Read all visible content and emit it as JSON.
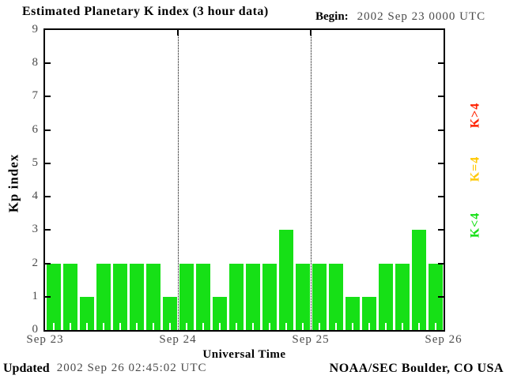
{
  "app": {
    "title": "Estimated Planetary K index (3 hour data)",
    "begin_label": "Begin:",
    "begin_value": "2002 Sep 23 0000 UTC",
    "updated_label": "Updated",
    "updated_value": "2002 Sep 26 02:45:02 UTC",
    "credit": "NOAA/SEC Boulder, CO USA"
  },
  "colors": {
    "bar_green": "#16e016",
    "legend_yellow": "#ffc800",
    "legend_red": "#ff2200",
    "axis_black": "#000000",
    "muted_text": "#4a4a4a",
    "background": "#ffffff"
  },
  "chart_data": {
    "type": "bar",
    "title": "Estimated Planetary K index (3 hour data)",
    "begin": "2002 Sep 23 0000 UTC",
    "xlabel": "Universal Time",
    "ylabel": "Kp index",
    "ylim": [
      0,
      9
    ],
    "yticks": [
      0,
      1,
      2,
      3,
      4,
      5,
      6,
      7,
      8,
      9
    ],
    "x_tick_labels": [
      "Sep 23",
      "Sep 24",
      "Sep 25",
      "Sep 26"
    ],
    "hours_per_bar": 3,
    "bars_per_day": 8,
    "values": [
      2,
      2,
      1,
      2,
      2,
      2,
      2,
      1,
      2,
      2,
      1,
      2,
      2,
      2,
      3,
      2,
      2,
      2,
      1,
      1,
      2,
      2,
      3,
      2
    ],
    "values_by_day": {
      "Sep 23": [
        2,
        2,
        1,
        2,
        2,
        2,
        2,
        1
      ],
      "Sep 24": [
        2,
        2,
        1,
        2,
        2,
        2,
        3,
        2
      ],
      "Sep 25": [
        2,
        2,
        1,
        1,
        2,
        2,
        3,
        2
      ]
    },
    "color_rule": {
      "lt4": "#16e016",
      "eq4": "#ffc800",
      "gt4": "#ff2200"
    },
    "legend": [
      {
        "label": "K>4",
        "color": "#ff2200"
      },
      {
        "label": "K=4",
        "color": "#ffc800"
      },
      {
        "label": "K<4",
        "color": "#16e016"
      }
    ],
    "grid": "dotted vertical lines at day boundaries",
    "legend_position": "right side, rotated 90deg"
  }
}
